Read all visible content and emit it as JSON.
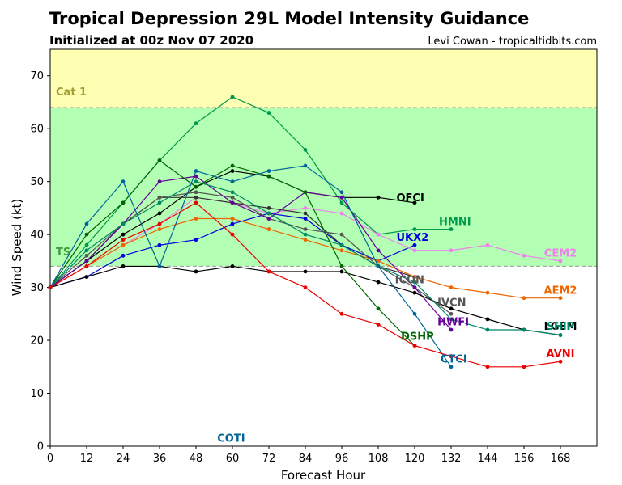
{
  "chart_data": {
    "type": "line",
    "title": "Tropical Depression 29L Model Intensity Guidance",
    "subtitle": "Initialized at 00z Nov 07 2020",
    "credit": "Levi Cowan - tropicaltidbits.com",
    "xlabel": "Forecast Hour",
    "ylabel": "Wind Speed (kt)",
    "xlim": [
      0,
      180
    ],
    "ylim": [
      0,
      75
    ],
    "xticks": [
      0,
      12,
      24,
      36,
      48,
      60,
      72,
      84,
      96,
      108,
      120,
      132,
      144,
      156,
      168
    ],
    "yticks": [
      0,
      10,
      20,
      30,
      40,
      50,
      60,
      70
    ],
    "bands": [
      {
        "name": "Cat 1",
        "from": 64,
        "to": 75,
        "color": "#ffffb3",
        "label_color": "#a0a030"
      },
      {
        "name": "TS",
        "from": 34,
        "to": 64,
        "color": "#b3ffb3",
        "label_color": "#40a040"
      }
    ],
    "series": [
      {
        "name": "OFCI",
        "color": "#000000",
        "label_color": "#000000",
        "x": [
          0,
          12,
          24,
          36,
          48,
          60,
          72,
          84,
          96,
          108,
          120
        ],
        "y": [
          30,
          35,
          40,
          44,
          49,
          52,
          51,
          48,
          47,
          47,
          46
        ]
      },
      {
        "name": "HMNI",
        "color": "#00994c",
        "label_color": "#00994c",
        "x": [
          0,
          12,
          24,
          36,
          48,
          60,
          72,
          84,
          96,
          108,
          120,
          132
        ],
        "y": [
          30,
          38,
          46,
          54,
          61,
          66,
          63,
          56,
          46,
          40,
          41,
          41
        ]
      },
      {
        "name": "UKX2",
        "color": "#0000e0",
        "label_color": "#0000e0",
        "x": [
          0,
          12,
          24,
          36,
          48,
          60,
          72,
          84,
          96,
          108,
          120
        ],
        "y": [
          30,
          32,
          36,
          38,
          39,
          42,
          44,
          43,
          38,
          35,
          38
        ]
      },
      {
        "name": "CEM2",
        "color": "#ee82ee",
        "label_color": "#ee82ee",
        "x": [
          0,
          12,
          24,
          36,
          48,
          60,
          72,
          84,
          96,
          108,
          120,
          132,
          144,
          156,
          168
        ],
        "y": [
          30,
          34,
          38,
          42,
          47,
          46,
          44,
          45,
          44,
          40,
          37,
          37,
          38,
          36,
          35
        ]
      },
      {
        "name": "ICON",
        "color": "#333333",
        "label_color": "#555555",
        "x": [
          0,
          12,
          24,
          36,
          48,
          60,
          72,
          84,
          96,
          108,
          120
        ],
        "y": [
          30,
          35,
          42,
          47,
          47,
          46,
          45,
          44,
          38,
          34,
          32
        ]
      },
      {
        "name": "AEM2",
        "color": "#ee6600",
        "label_color": "#ee6600",
        "x": [
          0,
          12,
          24,
          36,
          48,
          60,
          72,
          84,
          96,
          108,
          120,
          132,
          144,
          156,
          168
        ],
        "y": [
          30,
          34,
          38,
          41,
          43,
          43,
          41,
          39,
          37,
          35,
          32,
          30,
          29,
          28,
          28
        ]
      },
      {
        "name": "IVCN",
        "color": "#555555",
        "label_color": "#555555",
        "x": [
          0,
          12,
          24,
          36,
          48,
          60,
          72,
          84,
          96,
          108,
          120,
          132
        ],
        "y": [
          30,
          36,
          42,
          47,
          48,
          47,
          43,
          41,
          40,
          34,
          30,
          25
        ]
      },
      {
        "name": "HWFI",
        "color": "#660099",
        "label_color": "#660099",
        "x": [
          0,
          12,
          24,
          36,
          48,
          60,
          72,
          84,
          96,
          108,
          120,
          132
        ],
        "y": [
          30,
          35,
          42,
          50,
          51,
          46,
          43,
          48,
          47,
          37,
          30,
          22
        ]
      },
      {
        "name": "LGEM",
        "color": "#000000",
        "label_color": "#000000",
        "x": [
          0,
          12,
          24,
          36,
          48,
          60,
          72,
          84,
          96,
          108,
          120,
          132,
          144,
          156,
          168
        ],
        "y": [
          30,
          32,
          34,
          34,
          33,
          34,
          33,
          33,
          33,
          31,
          29,
          26,
          24,
          22,
          21
        ]
      },
      {
        "name": "SHIP",
        "color": "#008866",
        "label_color": "#008866",
        "x": [
          0,
          12,
          24,
          36,
          48,
          60,
          72,
          84,
          96,
          108,
          120,
          132,
          144,
          156,
          168
        ],
        "y": [
          30,
          37,
          42,
          46,
          50,
          48,
          44,
          40,
          38,
          34,
          31,
          24,
          22,
          22,
          21
        ]
      },
      {
        "name": "DSHP",
        "color": "#006600",
        "label_color": "#006600",
        "x": [
          0,
          12,
          24,
          36,
          48,
          60,
          72,
          84,
          96,
          108,
          120
        ],
        "y": [
          30,
          40,
          46,
          54,
          49,
          53,
          51,
          48,
          34,
          26,
          19
        ]
      },
      {
        "name": "CTCI",
        "color": "#006699",
        "label_color": "#006699",
        "x": [
          0,
          12,
          24,
          36,
          48,
          60,
          72,
          84,
          96,
          108,
          120,
          132
        ],
        "y": [
          30,
          42,
          50,
          34,
          52,
          50,
          52,
          53,
          48,
          34,
          25,
          15
        ]
      },
      {
        "name": "AVNI",
        "color": "#ee0000",
        "label_color": "#ee0000",
        "x": [
          0,
          12,
          24,
          36,
          48,
          60,
          72,
          84,
          96,
          108,
          120,
          132,
          144,
          156,
          168
        ],
        "y": [
          30,
          34,
          39,
          42,
          46,
          40,
          33,
          30,
          25,
          23,
          19,
          17,
          15,
          15,
          16
        ]
      },
      {
        "name": "COTI",
        "color": "#006699",
        "label_color": "#006699",
        "x": [],
        "y": []
      }
    ]
  }
}
